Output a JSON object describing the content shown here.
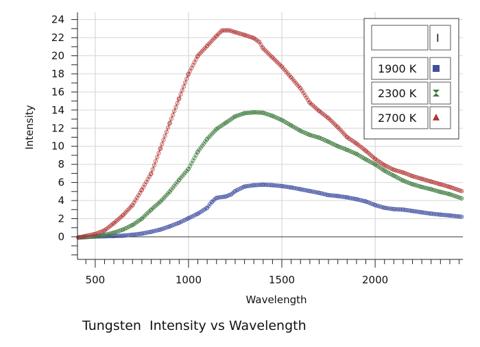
{
  "chart_data": {
    "type": "scatter",
    "title": "Tungsten  Intensity vs Wavelength",
    "xlabel": "Wavelength",
    "ylabel": "Intensity",
    "xlim": [
      405,
      2470
    ],
    "ylim": [
      -2.5,
      24.8
    ],
    "xticks": [
      500,
      1000,
      1500,
      2000
    ],
    "yticks": [
      0,
      2,
      4,
      6,
      8,
      10,
      12,
      14,
      16,
      18,
      20,
      22,
      24
    ],
    "grid": true,
    "legend_position": "top-right",
    "legend_header_mark": "I",
    "series": [
      {
        "name": "1900 K",
        "color": "#3f4fa0",
        "marker_icon": "square-icon",
        "points": [
          [
            410,
            -0.05
          ],
          [
            450,
            -0.02
          ],
          [
            500,
            0.02
          ],
          [
            550,
            0.05
          ],
          [
            600,
            0.08
          ],
          [
            650,
            0.12
          ],
          [
            700,
            0.22
          ],
          [
            750,
            0.35
          ],
          [
            800,
            0.55
          ],
          [
            850,
            0.8
          ],
          [
            900,
            1.15
          ],
          [
            950,
            1.55
          ],
          [
            1000,
            2.05
          ],
          [
            1050,
            2.55
          ],
          [
            1100,
            3.2
          ],
          [
            1125,
            3.85
          ],
          [
            1150,
            4.3
          ],
          [
            1200,
            4.45
          ],
          [
            1230,
            4.7
          ],
          [
            1250,
            5.05
          ],
          [
            1300,
            5.55
          ],
          [
            1350,
            5.7
          ],
          [
            1400,
            5.75
          ],
          [
            1450,
            5.7
          ],
          [
            1500,
            5.6
          ],
          [
            1550,
            5.45
          ],
          [
            1600,
            5.25
          ],
          [
            1650,
            5.05
          ],
          [
            1700,
            4.85
          ],
          [
            1750,
            4.6
          ],
          [
            1800,
            4.5
          ],
          [
            1850,
            4.35
          ],
          [
            1900,
            4.15
          ],
          [
            1950,
            3.9
          ],
          [
            2000,
            3.5
          ],
          [
            2050,
            3.2
          ],
          [
            2100,
            3.05
          ],
          [
            2150,
            3.0
          ],
          [
            2200,
            2.85
          ],
          [
            2250,
            2.7
          ],
          [
            2300,
            2.55
          ],
          [
            2350,
            2.45
          ],
          [
            2400,
            2.35
          ],
          [
            2470,
            2.2
          ]
        ]
      },
      {
        "name": "2300 K",
        "color": "#3c7a3c",
        "marker_icon": "hourglass-icon",
        "points": [
          [
            410,
            -0.1
          ],
          [
            450,
            -0.05
          ],
          [
            500,
            0.05
          ],
          [
            550,
            0.2
          ],
          [
            600,
            0.45
          ],
          [
            650,
            0.8
          ],
          [
            700,
            1.3
          ],
          [
            750,
            2.0
          ],
          [
            800,
            3.0
          ],
          [
            850,
            3.9
          ],
          [
            900,
            5.0
          ],
          [
            950,
            6.3
          ],
          [
            1000,
            7.5
          ],
          [
            1050,
            9.4
          ],
          [
            1100,
            10.8
          ],
          [
            1150,
            11.9
          ],
          [
            1200,
            12.6
          ],
          [
            1250,
            13.3
          ],
          [
            1300,
            13.65
          ],
          [
            1350,
            13.75
          ],
          [
            1400,
            13.7
          ],
          [
            1450,
            13.35
          ],
          [
            1500,
            12.9
          ],
          [
            1550,
            12.3
          ],
          [
            1600,
            11.7
          ],
          [
            1650,
            11.25
          ],
          [
            1700,
            10.95
          ],
          [
            1750,
            10.5
          ],
          [
            1800,
            10.0
          ],
          [
            1850,
            9.6
          ],
          [
            1900,
            9.15
          ],
          [
            1950,
            8.55
          ],
          [
            2000,
            8.0
          ],
          [
            2050,
            7.3
          ],
          [
            2100,
            6.75
          ],
          [
            2150,
            6.2
          ],
          [
            2200,
            5.8
          ],
          [
            2250,
            5.5
          ],
          [
            2300,
            5.25
          ],
          [
            2350,
            4.95
          ],
          [
            2400,
            4.7
          ],
          [
            2470,
            4.2
          ]
        ]
      },
      {
        "name": "2700 K",
        "color": "#b23535",
        "marker_icon": "triangle-icon",
        "points": [
          [
            410,
            -0.1
          ],
          [
            450,
            0.1
          ],
          [
            500,
            0.3
          ],
          [
            550,
            0.7
          ],
          [
            600,
            1.5
          ],
          [
            650,
            2.4
          ],
          [
            700,
            3.5
          ],
          [
            750,
            5.2
          ],
          [
            800,
            7.0
          ],
          [
            850,
            9.8
          ],
          [
            900,
            12.6
          ],
          [
            950,
            15.3
          ],
          [
            1000,
            18.0
          ],
          [
            1050,
            20.0
          ],
          [
            1100,
            21.1
          ],
          [
            1150,
            22.2
          ],
          [
            1180,
            22.8
          ],
          [
            1220,
            22.8
          ],
          [
            1250,
            22.6
          ],
          [
            1300,
            22.3
          ],
          [
            1350,
            21.95
          ],
          [
            1380,
            21.5
          ],
          [
            1400,
            20.8
          ],
          [
            1450,
            19.8
          ],
          [
            1500,
            18.8
          ],
          [
            1550,
            17.6
          ],
          [
            1600,
            16.4
          ],
          [
            1650,
            14.8
          ],
          [
            1700,
            13.9
          ],
          [
            1750,
            13.1
          ],
          [
            1800,
            12.1
          ],
          [
            1850,
            11.0
          ],
          [
            1900,
            10.3
          ],
          [
            1950,
            9.5
          ],
          [
            2000,
            8.6
          ],
          [
            2050,
            7.9
          ],
          [
            2100,
            7.4
          ],
          [
            2150,
            7.1
          ],
          [
            2200,
            6.7
          ],
          [
            2250,
            6.4
          ],
          [
            2300,
            6.1
          ],
          [
            2350,
            5.8
          ],
          [
            2400,
            5.5
          ],
          [
            2470,
            5.0
          ]
        ]
      }
    ]
  }
}
